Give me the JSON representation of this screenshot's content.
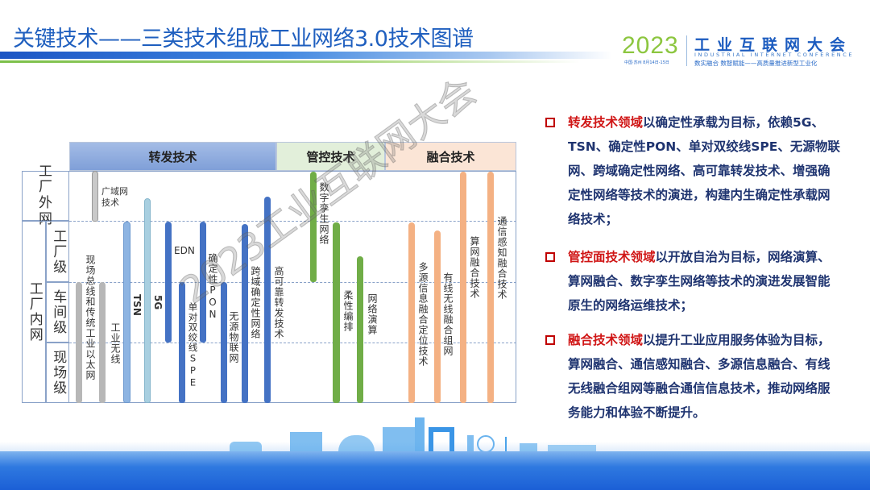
{
  "slide": {
    "title": "关键技术——三类技术组成工业网络3.0技术图谱"
  },
  "logo": {
    "year": "2023",
    "name": "工业互联网大会",
    "english": "INDUSTRIAL INTERNET CONFERENCE",
    "location_date": "中国·苏州 8月14日-15日",
    "slogan": "数实融合  数智赋能——高质量推进新型工业化"
  },
  "diagram": {
    "categories": [
      {
        "label": "转发技术",
        "color": "#8eaadb"
      },
      {
        "label": "管控技术",
        "color": "#e2efda"
      },
      {
        "label": "融合技术",
        "color": "#fbe5d6"
      }
    ],
    "rows": {
      "outer": "工厂外网",
      "inner": "工厂内网",
      "levels": [
        "工厂级",
        "车间级",
        "现场级"
      ]
    },
    "technologies": {
      "wan": "广域网技术",
      "fieldbus": "现场总线和传统工业以太网",
      "wireless": "工业无线",
      "tsn": "TSN",
      "g5": "5G",
      "edn": "EDN",
      "spe": "单对双绞线SPE",
      "pon": "确定性PON",
      "iot": "无源物联网",
      "cross_domain": "跨域确定性网络",
      "reliable": "高可靠转发技术",
      "digital_twin": "数字孪生网络",
      "orchestration": "柔性编排",
      "calculus": "网络演算",
      "positioning": "多源信息融合定位技术",
      "wired_wireless": "有线无线融合组网",
      "compute_net": "算网融合技术",
      "sensing": "通信感知融合技术"
    },
    "colors": {
      "gray": "#b7b7b7",
      "light_blue": "#8db4e2",
      "pale_blue": "#a8cfe0",
      "blue": "#4472c4",
      "green": "#70ad47",
      "orange": "#f4b183"
    },
    "watermark": "2023工业互联网大会"
  },
  "bullets": [
    {
      "highlight": "转发技术领域",
      "text": "以确定性承载为目标，依赖5G、TSN、确定性PON、单对双绞线SPE、无源物联网、跨域确定性网络、高可靠转发技术、增强确定性网络等技术的演进，构建内生确定性承载网络技术；"
    },
    {
      "highlight": "管控面技术领域",
      "text": "以开放自治为目标，网络演算、算网融合、数字孪生网络等技术的演进发展智能原生的网络运维技术；"
    },
    {
      "highlight": "融合技术领域",
      "text": "以提升工业应用服务体验为目标，算网融合、通信感知融合、多源信息融合、有线无线融合组网等融合通信信息技术，推动网络服务能力和体验不断提升。"
    }
  ],
  "colors": {
    "title": "#1f5fbf",
    "highlight": "#d01616",
    "body_text": "#1f3470"
  }
}
